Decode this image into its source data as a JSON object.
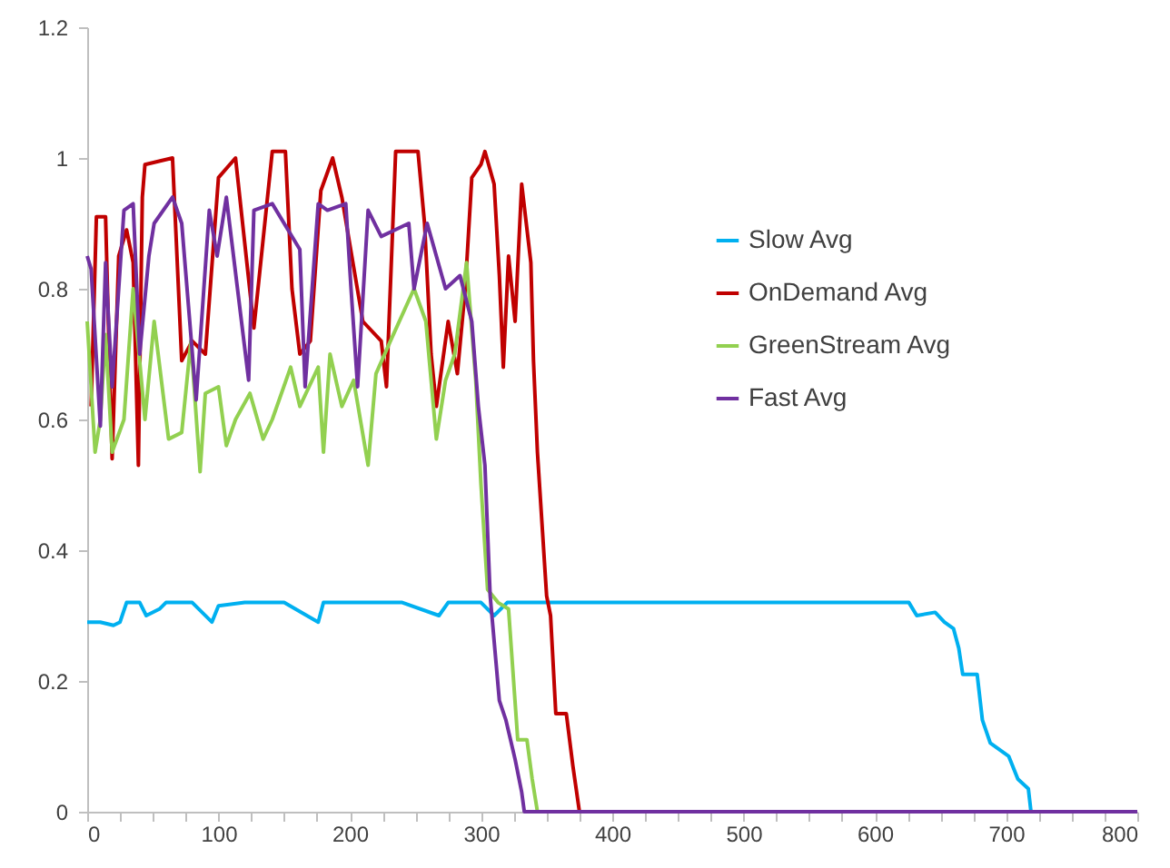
{
  "chart_data": {
    "type": "line",
    "xlim": [
      0,
      800
    ],
    "ylim": [
      0,
      1.2
    ],
    "xticks": [
      0,
      {
        "value": 25,
        "label": null
      },
      {
        "value": 50,
        "label": null
      },
      {
        "value": 75,
        "label": null
      },
      100,
      {
        "value": 125,
        "label": null
      },
      {
        "value": 150,
        "label": null
      },
      {
        "value": 175,
        "label": null
      },
      200,
      {
        "value": 225,
        "label": null
      },
      {
        "value": 250,
        "label": null
      },
      {
        "value": 275,
        "label": null
      },
      300,
      {
        "value": 325,
        "label": null
      },
      {
        "value": 350,
        "label": null
      },
      {
        "value": 375,
        "label": null
      },
      400,
      {
        "value": 425,
        "label": null
      },
      {
        "value": 450,
        "label": null
      },
      {
        "value": 475,
        "label": null
      },
      500,
      {
        "value": 525,
        "label": null
      },
      {
        "value": 550,
        "label": null
      },
      {
        "value": 575,
        "label": null
      },
      600,
      {
        "value": 625,
        "label": null
      },
      {
        "value": 650,
        "label": null
      },
      {
        "value": 675,
        "label": null
      },
      700,
      {
        "value": 725,
        "label": null
      },
      {
        "value": 750,
        "label": null
      },
      {
        "value": 775,
        "label": null
      },
      800
    ],
    "yticks": [
      0,
      0.2,
      0.4,
      0.6,
      0.8,
      1,
      1.2
    ],
    "grid": false,
    "legend": "right",
    "marker": "none",
    "line_style": "solid",
    "series": [
      {
        "name": "Slow Avg",
        "color": "#00b0f0",
        "x": [
          0,
          10,
          20,
          25,
          30,
          40,
          45,
          55,
          60,
          80,
          95,
          100,
          120,
          150,
          176,
          180,
          200,
          240,
          268,
          275,
          300,
          310,
          320,
          350,
          400,
          450,
          500,
          550,
          600,
          626,
          632,
          646,
          653,
          660,
          664,
          667,
          678,
          682,
          688,
          702,
          709,
          717,
          719
        ],
        "values": [
          0.29,
          0.29,
          0.285,
          0.29,
          0.32,
          0.32,
          0.3,
          0.31,
          0.32,
          0.32,
          0.29,
          0.315,
          0.32,
          0.32,
          0.29,
          0.32,
          0.32,
          0.32,
          0.3,
          0.32,
          0.32,
          0.3,
          0.32,
          0.32,
          0.32,
          0.32,
          0.32,
          0.32,
          0.32,
          0.32,
          0.3,
          0.305,
          0.29,
          0.28,
          0.25,
          0.21,
          0.21,
          0.14,
          0.105,
          0.085,
          0.05,
          0.035,
          0
        ]
      },
      {
        "name": "OnDemand Avg",
        "color": "#c00000",
        "x": [
          3,
          7,
          14,
          17,
          19,
          24,
          30,
          35,
          39,
          42,
          44,
          65,
          72,
          80,
          90,
          100,
          113,
          127,
          141,
          151,
          156,
          162,
          170,
          178,
          187,
          194,
          210,
          224,
          228,
          235,
          252,
          257,
          262,
          266,
          275,
          282,
          288,
          293,
          300,
          303,
          310,
          314,
          317,
          321,
          326,
          331,
          338,
          340,
          343,
          350,
          353,
          357,
          365,
          370,
          375,
          400,
          800
        ],
        "values": [
          0.62,
          0.91,
          0.91,
          0.68,
          0.54,
          0.85,
          0.89,
          0.84,
          0.53,
          0.94,
          0.99,
          1.0,
          0.69,
          0.72,
          0.7,
          0.97,
          1.0,
          0.74,
          1.01,
          1.01,
          0.8,
          0.7,
          0.72,
          0.95,
          1.0,
          0.94,
          0.75,
          0.72,
          0.65,
          1.01,
          1.01,
          0.9,
          0.7,
          0.62,
          0.75,
          0.67,
          0.8,
          0.97,
          0.99,
          1.01,
          0.96,
          0.82,
          0.68,
          0.85,
          0.75,
          0.96,
          0.84,
          0.69,
          0.55,
          0.33,
          0.3,
          0.15,
          0.15,
          0.07,
          0,
          0,
          0
        ]
      },
      {
        "name": "GreenStream Avg",
        "color": "#92d050",
        "x": [
          0,
          6,
          10,
          14,
          19,
          28,
          35,
          44,
          51,
          62,
          72,
          79,
          86,
          90,
          100,
          106,
          113,
          124,
          134,
          141,
          155,
          162,
          176,
          180,
          185,
          194,
          203,
          214,
          220,
          231,
          249,
          258,
          266,
          273,
          280,
          289,
          296,
          300,
          305,
          313,
          321,
          328,
          335,
          339,
          343,
          400,
          800
        ],
        "values": [
          0.75,
          0.55,
          0.6,
          0.73,
          0.55,
          0.6,
          0.8,
          0.6,
          0.75,
          0.57,
          0.58,
          0.72,
          0.52,
          0.64,
          0.65,
          0.56,
          0.6,
          0.64,
          0.57,
          0.6,
          0.68,
          0.62,
          0.68,
          0.55,
          0.7,
          0.62,
          0.66,
          0.53,
          0.67,
          0.72,
          0.8,
          0.75,
          0.57,
          0.66,
          0.7,
          0.84,
          0.66,
          0.5,
          0.34,
          0.32,
          0.31,
          0.11,
          0.11,
          0.05,
          0,
          0,
          0
        ]
      },
      {
        "name": "Fast Avg",
        "color": "#7030a0",
        "x": [
          0,
          3,
          10,
          14,
          19,
          28,
          35,
          40,
          47,
          51,
          65,
          72,
          83,
          93,
          99,
          106,
          123,
          127,
          141,
          162,
          166,
          176,
          183,
          197,
          201,
          206,
          214,
          224,
          245,
          249,
          259,
          273,
          284,
          293,
          298,
          303,
          307,
          314,
          319,
          326,
          331,
          333,
          400,
          800
        ],
        "values": [
          0.85,
          0.83,
          0.59,
          0.84,
          0.65,
          0.92,
          0.93,
          0.7,
          0.85,
          0.9,
          0.94,
          0.9,
          0.63,
          0.92,
          0.85,
          0.94,
          0.66,
          0.92,
          0.93,
          0.86,
          0.65,
          0.93,
          0.92,
          0.93,
          0.8,
          0.65,
          0.92,
          0.88,
          0.9,
          0.8,
          0.9,
          0.8,
          0.82,
          0.75,
          0.62,
          0.53,
          0.33,
          0.17,
          0.14,
          0.08,
          0.03,
          0,
          0,
          0
        ]
      }
    ]
  }
}
